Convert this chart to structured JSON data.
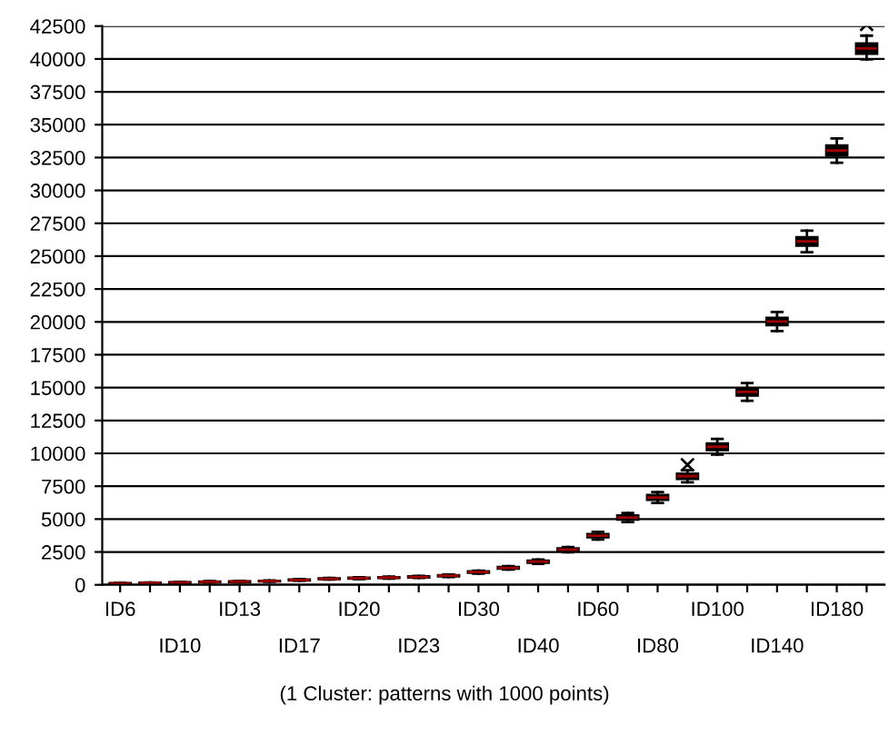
{
  "chart_data": {
    "type": "box",
    "categories": [
      "ID6",
      null,
      "ID10",
      null,
      "ID13",
      null,
      "ID17",
      null,
      "ID20",
      null,
      "ID23",
      null,
      "ID30",
      null,
      "ID40",
      null,
      "ID60",
      null,
      "ID80",
      null,
      "ID100",
      null,
      "ID140",
      null,
      "ID180",
      null
    ],
    "boxes": [
      {
        "low": 60,
        "q1": 80,
        "median": 100,
        "q3": 120,
        "high": 140
      },
      {
        "low": 100,
        "q1": 120,
        "median": 140,
        "q3": 160,
        "high": 180
      },
      {
        "low": 140,
        "q1": 160,
        "median": 180,
        "q3": 200,
        "high": 220
      },
      {
        "low": 180,
        "q1": 210,
        "median": 230,
        "q3": 250,
        "high": 280
      },
      {
        "low": 190,
        "q1": 220,
        "median": 240,
        "q3": 260,
        "high": 290
      },
      {
        "low": 230,
        "q1": 260,
        "median": 280,
        "q3": 300,
        "high": 330
      },
      {
        "low": 310,
        "q1": 340,
        "median": 370,
        "q3": 400,
        "high": 430
      },
      {
        "low": 400,
        "q1": 430,
        "median": 460,
        "q3": 490,
        "high": 520
      },
      {
        "low": 440,
        "q1": 480,
        "median": 510,
        "q3": 540,
        "high": 580
      },
      {
        "low": 480,
        "q1": 520,
        "median": 550,
        "q3": 580,
        "high": 620
      },
      {
        "low": 520,
        "q1": 560,
        "median": 600,
        "q3": 640,
        "high": 680
      },
      {
        "low": 600,
        "q1": 650,
        "median": 690,
        "q3": 730,
        "high": 780
      },
      {
        "low": 860,
        "q1": 920,
        "median": 970,
        "q3": 1020,
        "high": 1080
      },
      {
        "low": 1160,
        "q1": 1230,
        "median": 1290,
        "q3": 1350,
        "high": 1420
      },
      {
        "low": 1600,
        "q1": 1690,
        "median": 1760,
        "q3": 1830,
        "high": 1920
      },
      {
        "low": 2480,
        "q1": 2590,
        "median": 2680,
        "q3": 2770,
        "high": 2880
      },
      {
        "low": 3450,
        "q1": 3620,
        "median": 3740,
        "q3": 3860,
        "high": 4030
      },
      {
        "low": 4780,
        "q1": 4970,
        "median": 5120,
        "q3": 5270,
        "high": 5460
      },
      {
        "low": 6220,
        "q1": 6460,
        "median": 6640,
        "q3": 6820,
        "high": 7060
      },
      {
        "low": 7800,
        "q1": 8060,
        "median": 8260,
        "q3": 8460,
        "high": 8720,
        "outliers": [
          9130
        ]
      },
      {
        "low": 9900,
        "q1": 10250,
        "median": 10500,
        "q3": 10750,
        "high": 11100
      },
      {
        "low": 14000,
        "q1": 14400,
        "median": 14670,
        "q3": 14940,
        "high": 15340
      },
      {
        "low": 19300,
        "q1": 19750,
        "median": 20030,
        "q3": 20310,
        "high": 20760
      },
      {
        "low": 25300,
        "q1": 25800,
        "median": 26120,
        "q3": 26440,
        "high": 26940
      },
      {
        "low": 32100,
        "q1": 32650,
        "median": 33030,
        "q3": 33410,
        "high": 33960
      },
      {
        "low": 39960,
        "q1": 40400,
        "median": 40790,
        "q3": 41180,
        "high": 41770,
        "outliers": [
          42630
        ]
      }
    ],
    "color": "#000000",
    "ylim": [
      0,
      42500
    ],
    "yticks": [
      0,
      2500,
      5000,
      7500,
      10000,
      12500,
      15000,
      17500,
      20000,
      22500,
      25000,
      27500,
      30000,
      32500,
      35000,
      37500,
      40000,
      42500
    ],
    "grid": "y",
    "annotations": [
      "(1 Cluster: patterns with 1000 points)"
    ]
  }
}
